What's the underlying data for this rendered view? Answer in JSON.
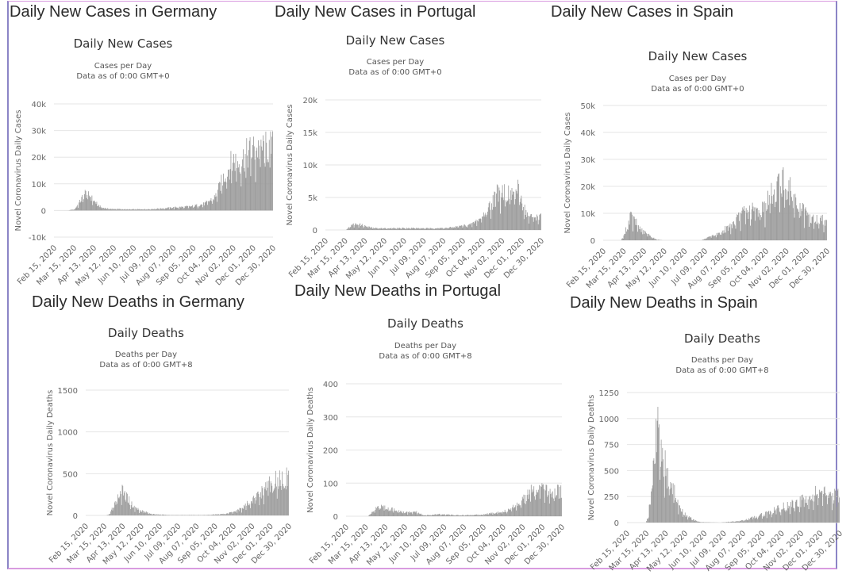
{
  "page": {
    "panels": [
      {
        "id": "de-cases",
        "heading": "Daily New Cases in Germany"
      },
      {
        "id": "pt-cases",
        "heading": "Daily New Cases in Portugal"
      },
      {
        "id": "es-cases",
        "heading": "Daily New Cases in Spain"
      },
      {
        "id": "de-deaths",
        "heading": "Daily New Deaths in Germany"
      },
      {
        "id": "pt-deaths",
        "heading": "Daily New Deaths in Portugal"
      },
      {
        "id": "es-deaths",
        "heading": "Daily New Deaths in Spain"
      }
    ],
    "colors": {
      "bar": "#999999",
      "grid": "#e6e6e6",
      "frame_side": "#8b84c6",
      "frame_edge": "#d99be0"
    }
  },
  "chart_data": [
    {
      "type": "bar",
      "panel_heading": "Daily New Cases in Germany",
      "title": "Daily New Cases",
      "subtitle": [
        "Cases per Day",
        "Data as of 0:00 GMT+0"
      ],
      "ylabel": "Novel Coronavirus Daily Cases",
      "xlabel": "",
      "ylim": [
        -10000,
        40000
      ],
      "yticks": [
        -10000,
        0,
        10000,
        20000,
        30000,
        40000
      ],
      "ytick_labels": [
        "-10k",
        "0",
        "10k",
        "20k",
        "30k",
        "40k"
      ],
      "xtick_labels": [
        "Feb 15, 2020",
        "Mar 15, 2020",
        "Apr 13, 2020",
        "May 12, 2020",
        "Jun 10, 2020",
        "Jul 09, 2020",
        "Aug 07, 2020",
        "Sep 05, 2020",
        "Oct 04, 2020",
        "Nov 02, 2020",
        "Dec 01, 2020",
        "Dec 30, 2020"
      ],
      "grid": true,
      "x_range_days": [
        0,
        320
      ],
      "series": [
        {
          "name": "Daily Cases",
          "keypoints": [
            [
              0,
              0
            ],
            [
              20,
              10
            ],
            [
              30,
              500
            ],
            [
              38,
              3500
            ],
            [
              45,
              6500
            ],
            [
              52,
              5500
            ],
            [
              58,
              3500
            ],
            [
              68,
              1200
            ],
            [
              80,
              600
            ],
            [
              110,
              400
            ],
            [
              140,
              500
            ],
            [
              160,
              800
            ],
            [
              180,
              1200
            ],
            [
              200,
              1500
            ],
            [
              220,
              2500
            ],
            [
              235,
              5000
            ],
            [
              250,
              14000
            ],
            [
              262,
              19000
            ],
            [
              270,
              18000
            ],
            [
              285,
              22000
            ],
            [
              300,
              23500
            ]
          ]
        }
      ]
    },
    {
      "type": "bar",
      "panel_heading": "Daily New Cases in Portugal",
      "title": "Daily New Cases",
      "subtitle": [
        "Cases per Day",
        "Data as of 0:00 GMT+0"
      ],
      "ylabel": "Novel Coronavirus Daily Cases",
      "xlabel": "",
      "ylim": [
        0,
        20000
      ],
      "yticks": [
        0,
        5000,
        10000,
        15000,
        20000
      ],
      "ytick_labels": [
        "0",
        "5k",
        "10k",
        "15k",
        "20k"
      ],
      "xtick_labels": [
        "Feb 15, 2020",
        "Mar 15, 2020",
        "Apr 13, 2020",
        "May 12, 2020",
        "Jun 10, 2020",
        "Jul 09, 2020",
        "Aug 07, 2020",
        "Sep 05, 2020",
        "Oct 04, 2020",
        "Nov 02, 2020",
        "Dec 01, 2020",
        "Dec 30, 2020"
      ],
      "grid": true,
      "x_range_days": [
        0,
        320
      ],
      "series": [
        {
          "name": "Daily Cases",
          "keypoints": [
            [
              0,
              0
            ],
            [
              30,
              0
            ],
            [
              33,
              300
            ],
            [
              40,
              800
            ],
            [
              48,
              900
            ],
            [
              58,
              600
            ],
            [
              70,
              300
            ],
            [
              90,
              250
            ],
            [
              120,
              300
            ],
            [
              150,
              250
            ],
            [
              180,
              300
            ],
            [
              200,
              600
            ],
            [
              215,
              800
            ],
            [
              230,
              1800
            ],
            [
              245,
              4000
            ],
            [
              258,
              6500
            ],
            [
              270,
              5500
            ],
            [
              285,
              6000
            ],
            [
              300,
              2000
            ]
          ]
        }
      ]
    },
    {
      "type": "bar",
      "panel_heading": "Daily New Cases in Spain",
      "title": "Daily New Cases",
      "subtitle": [
        "Cases per Day",
        "Data as of 0:00 GMT+0"
      ],
      "ylabel": "Novel Coronavirus Daily Cases",
      "xlabel": "",
      "ylim": [
        0,
        50000
      ],
      "yticks": [
        0,
        10000,
        20000,
        30000,
        40000,
        50000
      ],
      "ytick_labels": [
        "0",
        "10k",
        "20k",
        "30k",
        "40k",
        "50k"
      ],
      "xtick_labels": [
        "Feb 15, 2020",
        "Mar 15, 2020",
        "Apr 13, 2020",
        "May 12, 2020",
        "Jun 10, 2020",
        "Jul 09, 2020",
        "Aug 07, 2020",
        "Sep 05, 2020",
        "Oct 04, 2020",
        "Nov 02, 2020",
        "Dec 01, 2020",
        "Dec 30, 2020"
      ],
      "grid": true,
      "x_range_days": [
        0,
        320
      ],
      "series": [
        {
          "name": "Daily Cases",
          "keypoints": [
            [
              0,
              0
            ],
            [
              25,
              0
            ],
            [
              30,
              2000
            ],
            [
              38,
              9000
            ],
            [
              45,
              7000
            ],
            [
              55,
              3500
            ],
            [
              65,
              2000
            ],
            [
              75,
              300
            ],
            [
              85,
              0
            ],
            [
              140,
              0
            ],
            [
              148,
              800
            ],
            [
              165,
              2500
            ],
            [
              185,
              6000
            ],
            [
              200,
              10000
            ],
            [
              215,
              11000
            ],
            [
              230,
              12000
            ],
            [
              245,
              19000
            ],
            [
              255,
              22000
            ],
            [
              265,
              19000
            ],
            [
              280,
              12000
            ],
            [
              295,
              8000
            ],
            [
              305,
              7500
            ]
          ]
        }
      ]
    },
    {
      "type": "bar",
      "panel_heading": "Daily New Deaths in Germany",
      "title": "Daily Deaths",
      "subtitle": [
        "Deaths per Day",
        "Data as of 0:00 GMT+8"
      ],
      "ylabel": "Novel Coronavirus Daily Deaths",
      "xlabel": "",
      "ylim": [
        0,
        1500
      ],
      "yticks": [
        0,
        500,
        1000,
        1500
      ],
      "ytick_labels": [
        "0",
        "500",
        "1000",
        "1500"
      ],
      "xtick_labels": [
        "Feb 15, 2020",
        "Mar 15, 2020",
        "Apr 13, 2020",
        "May 12, 2020",
        "Jun 10, 2020",
        "Jul 09, 2020",
        "Aug 07, 2020",
        "Sep 05, 2020",
        "Oct 04, 2020",
        "Nov 02, 2020",
        "Dec 01, 2020",
        "Dec 30, 2020"
      ],
      "grid": true,
      "x_range_days": [
        0,
        320
      ],
      "series": [
        {
          "name": "Daily Deaths",
          "keypoints": [
            [
              0,
              0
            ],
            [
              32,
              0
            ],
            [
              38,
              20
            ],
            [
              45,
              150
            ],
            [
              55,
              300
            ],
            [
              65,
              220
            ],
            [
              75,
              100
            ],
            [
              90,
              50
            ],
            [
              105,
              15
            ],
            [
              130,
              5
            ],
            [
              190,
              5
            ],
            [
              220,
              20
            ],
            [
              245,
              80
            ],
            [
              265,
              200
            ],
            [
              285,
              350
            ],
            [
              305,
              450
            ]
          ]
        }
      ]
    },
    {
      "type": "bar",
      "panel_heading": "Daily New Deaths in Portugal",
      "title": "Daily Deaths",
      "subtitle": [
        "Deaths per Day",
        "Data as of 0:00 GMT+8"
      ],
      "ylabel": "Novel Coronavirus Daily Deaths",
      "xlabel": "",
      "ylim": [
        0,
        400
      ],
      "yticks": [
        0,
        100,
        200,
        300,
        400
      ],
      "ytick_labels": [
        "0",
        "100",
        "200",
        "300",
        "400"
      ],
      "xtick_labels": [
        "Feb 15, 2020",
        "Mar 15, 2020",
        "Apr 13, 2020",
        "May 12, 2020",
        "Jun 10, 2020",
        "Jul 09, 2020",
        "Aug 07, 2020",
        "Sep 05, 2020",
        "Oct 04, 2020",
        "Nov 02, 2020",
        "Dec 01, 2020",
        "Dec 30, 2020"
      ],
      "grid": true,
      "x_range_days": [
        0,
        320
      ],
      "series": [
        {
          "name": "Daily Deaths",
          "keypoints": [
            [
              0,
              0
            ],
            [
              32,
              0
            ],
            [
              36,
              8
            ],
            [
              45,
              28
            ],
            [
              55,
              30
            ],
            [
              70,
              20
            ],
            [
              85,
              12
            ],
            [
              105,
              12
            ],
            [
              115,
              3
            ],
            [
              140,
              6
            ],
            [
              170,
              3
            ],
            [
              200,
              5
            ],
            [
              220,
              10
            ],
            [
              240,
              18
            ],
            [
              258,
              45
            ],
            [
              275,
              75
            ],
            [
              290,
              80
            ],
            [
              305,
              75
            ]
          ]
        }
      ]
    },
    {
      "type": "bar",
      "panel_heading": "Daily New Deaths in Spain",
      "title": "Daily Deaths",
      "subtitle": [
        "Deaths per Day",
        "Data as of 0:00 GMT+8"
      ],
      "ylabel": "Novel Coronavirus Daily Deaths",
      "xlabel": "",
      "ylim": [
        0,
        1250
      ],
      "yticks": [
        0,
        250,
        500,
        750,
        1000,
        1250
      ],
      "ytick_labels": [
        "0",
        "250",
        "500",
        "750",
        "1000",
        "1250"
      ],
      "xtick_labels": [
        "Feb 15, 2020",
        "Mar 15, 2020",
        "Apr 13, 2020",
        "May 12, 2020",
        "Jun 10, 2020",
        "Jul 09, 2020",
        "Aug 07, 2020",
        "Sep 05, 2020",
        "Oct 04, 2020",
        "Nov 02, 2020",
        "Dec 01, 2020",
        "Dec 30, 2020"
      ],
      "grid": true,
      "x_range_days": [
        0,
        320
      ],
      "series": [
        {
          "name": "Daily Deaths",
          "keypoints": [
            [
              0,
              0
            ],
            [
              28,
              0
            ],
            [
              32,
              60
            ],
            [
              38,
              500
            ],
            [
              44,
              950
            ],
            [
              52,
              700
            ],
            [
              60,
              450
            ],
            [
              70,
              300
            ],
            [
              80,
              120
            ],
            [
              90,
              60
            ],
            [
              100,
              25
            ],
            [
              110,
              5
            ],
            [
              140,
              0
            ],
            [
              175,
              20
            ],
            [
              195,
              60
            ],
            [
              215,
              100
            ],
            [
              235,
              150
            ],
            [
              255,
              180
            ],
            [
              275,
              250
            ],
            [
              290,
              300
            ],
            [
              305,
              250
            ]
          ]
        }
      ]
    }
  ]
}
